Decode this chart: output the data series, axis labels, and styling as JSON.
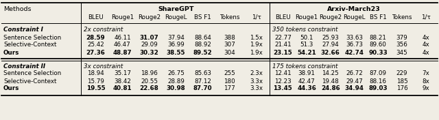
{
  "col_labels": [
    "BLEU",
    "Rouge1",
    "Rouge2",
    "RougeL",
    "BS F1",
    "Tokens",
    "1/τ"
  ],
  "rows": [
    {
      "method": "Sentence Selection",
      "sharegpt": [
        "28.59",
        "46.11",
        "31.07",
        "37.94",
        "88.64",
        "388",
        "1.5x"
      ],
      "arxiv": [
        "22.77",
        "50.1",
        "25.93",
        "33.63",
        "88.21",
        "379",
        "4x"
      ],
      "bold_sharegpt": [
        true,
        false,
        true,
        false,
        false,
        false,
        false
      ],
      "bold_arxiv": [
        false,
        false,
        false,
        false,
        false,
        false,
        false
      ],
      "bold_method": false,
      "section": 1
    },
    {
      "method": "Selective-Context",
      "sharegpt": [
        "25.42",
        "46.47",
        "29.09",
        "36.99",
        "88.92",
        "307",
        "1.9x"
      ],
      "arxiv": [
        "21.41",
        "51.3",
        "27.94",
        "36.73",
        "89.60",
        "356",
        "4x"
      ],
      "bold_sharegpt": [
        false,
        false,
        false,
        false,
        false,
        false,
        false
      ],
      "bold_arxiv": [
        false,
        false,
        false,
        false,
        false,
        false,
        false
      ],
      "bold_method": false,
      "section": 1
    },
    {
      "method": "Ours",
      "sharegpt": [
        "27.36",
        "48.87",
        "30.32",
        "38.55",
        "89.52",
        "304",
        "1.9x"
      ],
      "arxiv": [
        "23.15",
        "54.21",
        "32.66",
        "42.74",
        "90.33",
        "345",
        "4x"
      ],
      "bold_sharegpt": [
        true,
        true,
        true,
        true,
        true,
        false,
        false
      ],
      "bold_arxiv": [
        true,
        true,
        true,
        true,
        true,
        false,
        false
      ],
      "bold_method": true,
      "section": 1
    },
    {
      "method": "Sentence Selection",
      "sharegpt": [
        "18.94",
        "35.17",
        "18.96",
        "26.75",
        "85.63",
        "255",
        "2.3x"
      ],
      "arxiv": [
        "12.41",
        "38.91",
        "14.25",
        "26.72",
        "87.09",
        "229",
        "7x"
      ],
      "bold_sharegpt": [
        false,
        false,
        false,
        false,
        false,
        false,
        false
      ],
      "bold_arxiv": [
        false,
        false,
        false,
        false,
        false,
        false,
        false
      ],
      "bold_method": false,
      "section": 2
    },
    {
      "method": "Selective-Context",
      "sharegpt": [
        "15.79",
        "38.42",
        "20.55",
        "28.89",
        "87.12",
        "180",
        "3.3x"
      ],
      "arxiv": [
        "12.23",
        "42.47",
        "19.48",
        "29.47",
        "88.16",
        "185",
        "8x"
      ],
      "bold_sharegpt": [
        false,
        false,
        false,
        false,
        false,
        false,
        false
      ],
      "bold_arxiv": [
        false,
        false,
        false,
        false,
        false,
        false,
        false
      ],
      "bold_method": false,
      "section": 2
    },
    {
      "method": "Ours",
      "sharegpt": [
        "19.55",
        "40.81",
        "22.68",
        "30.98",
        "87.70",
        "177",
        "3.3x"
      ],
      "arxiv": [
        "13.45",
        "44.36",
        "24.86",
        "34.94",
        "89.03",
        "176",
        "9x"
      ],
      "bold_sharegpt": [
        true,
        true,
        true,
        true,
        true,
        false,
        false
      ],
      "bold_arxiv": [
        true,
        true,
        true,
        true,
        true,
        false,
        false
      ],
      "bold_method": true,
      "section": 2
    }
  ],
  "background_color": "#f0ede4",
  "fig_width": 6.4,
  "fig_height": 1.76,
  "dpi": 100
}
